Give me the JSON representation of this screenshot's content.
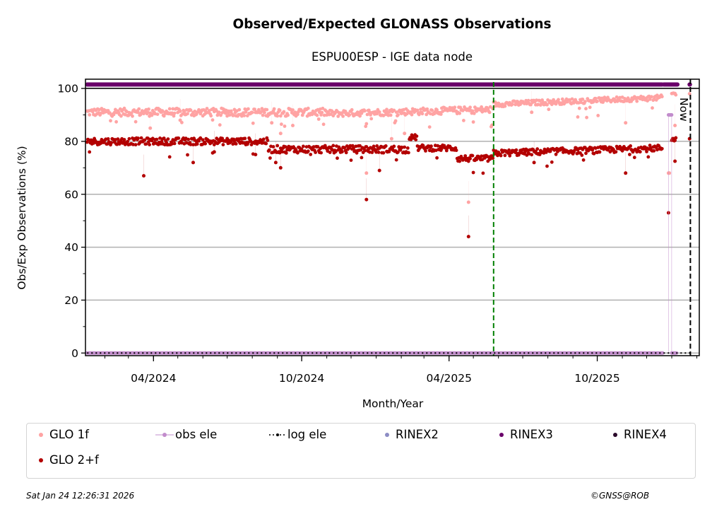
{
  "chart_data": {
    "type": "scatter",
    "title": "Observed/Expected GLONASS Observations",
    "subtitle": "ESPU00ESP - IGE data node",
    "xlabel": "Month/Year",
    "ylabel": "Obs/Exp Observations (%)",
    "xlim": [
      "2024-01-08",
      "2026-02-04"
    ],
    "ylim": [
      -1,
      103.5
    ],
    "yticks": [
      0,
      20,
      40,
      60,
      80,
      100
    ],
    "yticks_minor": [
      10,
      30,
      50,
      70,
      90
    ],
    "xticks": [
      {
        "date": "2024-04-01",
        "label": "04/2024"
      },
      {
        "date": "2024-10-01",
        "label": "10/2024"
      },
      {
        "date": "2025-04-01",
        "label": "04/2025"
      },
      {
        "date": "2025-10-01",
        "label": "10/2025"
      }
    ],
    "xticks_minor_monthly": true,
    "grid": "y-major",
    "vertical_lines": [
      {
        "name": "event",
        "date": "2025-05-26",
        "color": "#008000",
        "style": "dashed"
      },
      {
        "name": "now",
        "date": "2026-01-24",
        "color": "#000000",
        "style": "dashed",
        "label": "Now"
      }
    ],
    "series": [
      {
        "name": "GLO 1f",
        "color": "#ffa3a3",
        "marker": "dot",
        "segments": [
          {
            "start": "2024-01-10",
            "end": "2024-10-31",
            "mean": 91,
            "spread": 1.5,
            "outliers": [
              [
                "2024-03-28",
                85
              ],
              [
                "2024-05-04",
                88
              ],
              [
                "2024-08-25",
                87
              ],
              [
                "2024-09-05",
                83
              ],
              [
                "2024-09-20",
                86
              ]
            ]
          },
          {
            "start": "2024-11-01",
            "end": "2025-05-25",
            "mean_start": 90.5,
            "mean_end": 92,
            "spread": 1.3,
            "outliers": [
              [
                "2024-12-20",
                68
              ],
              [
                "2025-01-20",
                81
              ],
              [
                "2025-02-05",
                83
              ],
              [
                "2025-04-25",
                57
              ]
            ]
          },
          {
            "start": "2025-05-26",
            "end": "2025-12-20",
            "mean_start": 94,
            "mean_end": 96.5,
            "spread": 1.0,
            "outliers": [
              [
                "2025-07-12",
                91
              ],
              [
                "2025-11-05",
                87
              ]
            ]
          },
          {
            "start": "2025-12-28",
            "end": "2025-12-29",
            "values": [
              68,
              68
            ]
          },
          {
            "start": "2026-01-01",
            "end": "2026-01-06",
            "mean": 98,
            "outliers": [
              [
                "2026-01-05",
                86
              ]
            ]
          },
          {
            "start": "2026-01-23",
            "end": "2026-01-23",
            "values": [
              98
            ]
          }
        ]
      },
      {
        "name": "GLO 2+f",
        "color": "#b30000",
        "marker": "dot",
        "segments": [
          {
            "start": "2024-01-10",
            "end": "2024-08-20",
            "mean": 80,
            "spread": 1.3,
            "outliers": [
              [
                "2024-03-20",
                67
              ],
              [
                "2024-05-20",
                72
              ],
              [
                "2024-06-15",
                76
              ],
              [
                "2024-08-05",
                75
              ]
            ]
          },
          {
            "start": "2024-08-21",
            "end": "2025-02-10",
            "mean": 77,
            "spread": 1.4,
            "outliers": [
              [
                "2024-08-30",
                72
              ],
              [
                "2024-09-05",
                70
              ],
              [
                "2024-12-20",
                58
              ],
              [
                "2025-01-05",
                69
              ]
            ]
          },
          {
            "start": "2025-02-11",
            "end": "2025-02-20",
            "mean": 81.5,
            "spread": 1.0
          },
          {
            "start": "2025-02-21",
            "end": "2025-04-10",
            "mean": 77.5,
            "spread": 1.2
          },
          {
            "start": "2025-04-11",
            "end": "2025-05-25",
            "mean": 73.5,
            "spread": 1.2,
            "outliers": [
              [
                "2025-04-25",
                44
              ]
            ]
          },
          {
            "start": "2025-05-26",
            "end": "2025-12-20",
            "mean_start": 75.5,
            "mean_end": 77.5,
            "spread": 1.2,
            "outliers": [
              [
                "2025-11-05",
                68
              ],
              [
                "2025-07-15",
                72
              ]
            ]
          },
          {
            "start": "2025-12-28",
            "end": "2025-12-28",
            "values": [
              53
            ]
          },
          {
            "start": "2026-01-01",
            "end": "2026-01-06",
            "mean": 81,
            "outliers": [
              [
                "2026-01-05",
                72.5
              ]
            ]
          },
          {
            "start": "2026-01-23",
            "end": "2026-01-23",
            "values": [
              81
            ]
          }
        ]
      },
      {
        "name": "obs ele",
        "color": "#c28ccc",
        "marker": "dot-line",
        "segments": [
          {
            "start": "2024-01-10",
            "end": "2025-12-20",
            "value": 0
          },
          {
            "start": "2025-12-28",
            "end": "2025-12-31",
            "value": 90
          },
          {
            "start": "2026-01-01",
            "end": "2026-01-06",
            "value": 0
          }
        ]
      },
      {
        "name": "log ele",
        "color": "#000000",
        "marker": "dotted-line",
        "segments": [
          {
            "start": "2024-01-10",
            "end": "2026-01-24",
            "value": 0
          }
        ]
      },
      {
        "name": "RINEX2",
        "color": "#8c8cc4",
        "marker": "dot",
        "segments": []
      },
      {
        "name": "RINEX3",
        "color": "#6a006a",
        "marker": "dot",
        "segments": [
          {
            "start": "2024-01-10",
            "end": "2025-12-20",
            "value": 101.5
          },
          {
            "start": "2025-12-22",
            "end": "2026-01-08",
            "value": 101.5
          },
          {
            "start": "2026-01-23",
            "end": "2026-01-23",
            "value": 101.5
          }
        ]
      },
      {
        "name": "RINEX4",
        "color": "#2b0a2b",
        "marker": "dot",
        "segments": []
      }
    ],
    "legend": {
      "placement": "below",
      "entries": [
        "GLO 1f",
        "obs ele",
        "log ele",
        "RINEX2",
        "RINEX3",
        "RINEX4",
        "GLO 2+f"
      ]
    }
  },
  "footer": {
    "timestamp": "Sat Jan 24 12:26:31 2026",
    "credit": "©GNSS@ROB"
  }
}
